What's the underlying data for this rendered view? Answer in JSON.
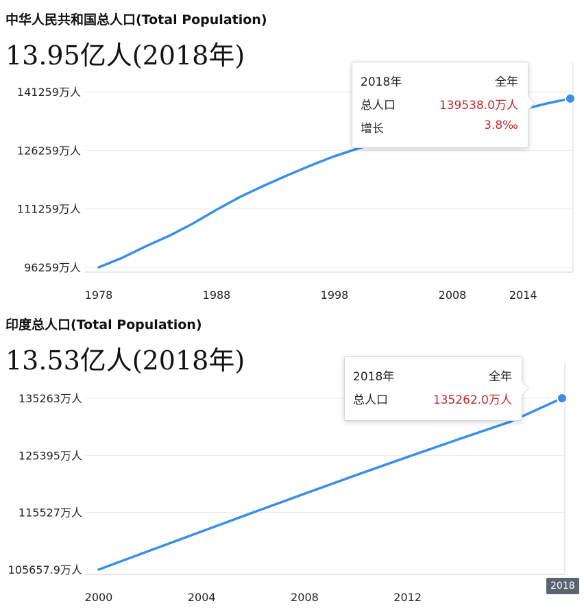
{
  "chart_data": [
    {
      "type": "line",
      "title": "中华人民共和国总人口(Total Population)",
      "headline": "13.95亿人(2018年)",
      "y_ticks": [
        "141259万人",
        "126259万人",
        "111259万人",
        "96259万人"
      ],
      "y_tick_values": [
        141259,
        126259,
        111259,
        96259
      ],
      "x_ticks": [
        "1978",
        "1988",
        "1998",
        "2008",
        "2014"
      ],
      "x_tick_values": [
        1978,
        1988,
        1998,
        2008,
        2014
      ],
      "xlim": [
        1978,
        2018
      ],
      "ylim": [
        96259,
        141259
      ],
      "series": [
        {
          "x": [
            1978,
            1980,
            1982,
            1984,
            1986,
            1988,
            1990,
            1992,
            1994,
            1996,
            1998,
            2000,
            2002,
            2004,
            2006,
            2008,
            2010,
            2012,
            2014,
            2016,
            2018
          ],
          "values": [
            96259,
            98705,
            101654,
            104357,
            107507,
            111026,
            114333,
            117171,
            119850,
            122389,
            124761,
            126743,
            128453,
            129988,
            131448,
            132802,
            134091,
            135404,
            136782,
            138271,
            139538
          ]
        }
      ],
      "color": "#3a8ee6",
      "tooltip": {
        "header_left": "2018年",
        "header_right": "全年",
        "rows": [
          {
            "label": "总人口",
            "value": "139538.0万人"
          },
          {
            "label": "增长",
            "value": "3.8‰"
          }
        ]
      }
    },
    {
      "type": "line",
      "title": "印度总人口(Total Population)",
      "headline": "13.53亿人(2018年)",
      "y_ticks": [
        "135263万人",
        "125395万人",
        "115527万人",
        "105657.9万人"
      ],
      "y_tick_values": [
        135263,
        125395,
        115527,
        105657.9
      ],
      "x_ticks": [
        "2000",
        "2004",
        "2008",
        "2012"
      ],
      "x_tick_values": [
        2000,
        2004,
        2008,
        2012
      ],
      "x_badge": "2018",
      "xlim": [
        2000,
        2018
      ],
      "ylim": [
        105657.9,
        135263
      ],
      "series": [
        {
          "x": [
            2000,
            2002,
            2004,
            2006,
            2008,
            2010,
            2012,
            2014,
            2016,
            2018
          ],
          "values": [
            105657.9,
            108960,
            112240,
            115520,
            118770,
            121980,
            125120,
            128210,
            131210,
            135262
          ]
        }
      ],
      "color": "#3a8ee6",
      "tooltip": {
        "header_left": "2018年",
        "header_right": "全年",
        "rows": [
          {
            "label": "总人口",
            "value": "135262.0万人"
          }
        ]
      }
    }
  ]
}
